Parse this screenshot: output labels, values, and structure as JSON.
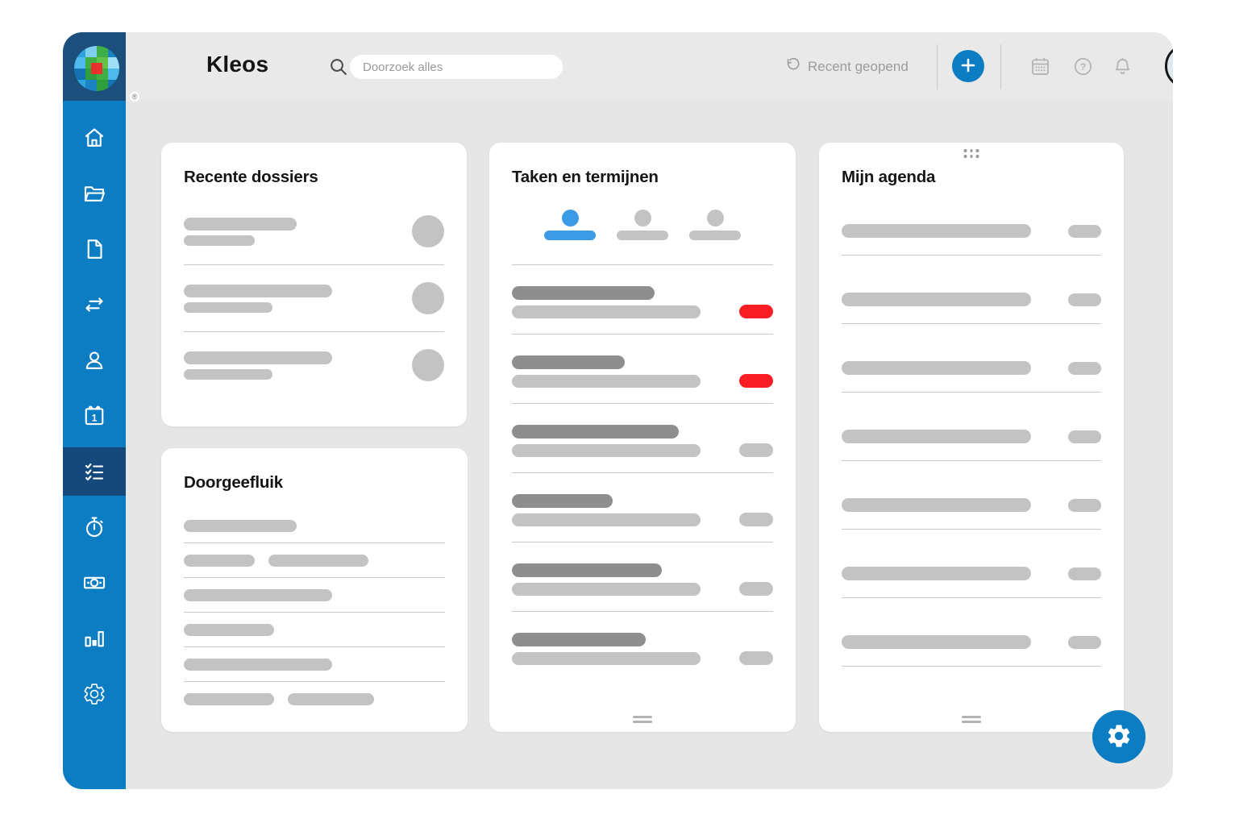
{
  "header": {
    "app_title": "Kleos",
    "search": {
      "placeholder": "Doorzoek alles",
      "icon": "search-icon"
    },
    "recent_label": "Recent geopend",
    "recent_icon": "history-icon",
    "add_button_icon": "plus-icon",
    "action_icons": [
      "calendar-icon",
      "help-icon",
      "bell-icon"
    ],
    "avatar": "user-avatar",
    "registered_mark": "®"
  },
  "sidebar": {
    "items": [
      {
        "id": "home",
        "icon": "home-icon",
        "active": false
      },
      {
        "id": "dossiers",
        "icon": "folder-icon",
        "active": false
      },
      {
        "id": "documenten",
        "icon": "document-icon",
        "active": false
      },
      {
        "id": "uitwisseling",
        "icon": "transfer-arrows-icon",
        "active": false
      },
      {
        "id": "contacten",
        "icon": "person-icon",
        "active": false
      },
      {
        "id": "agenda",
        "icon": "calendar-day-icon",
        "active": false
      },
      {
        "id": "taken",
        "icon": "task-list-icon",
        "active": true
      },
      {
        "id": "tijd",
        "icon": "stopwatch-icon",
        "active": false
      },
      {
        "id": "facturatie",
        "icon": "banknote-icon",
        "active": false
      },
      {
        "id": "rapporten",
        "icon": "bar-chart-icon",
        "active": false
      },
      {
        "id": "instellingen",
        "icon": "gear-icon",
        "active": false
      }
    ]
  },
  "cards": {
    "recente_dossiers": {
      "title": "Recente dossiers",
      "rows": [
        {
          "line1_w": 140,
          "line2_w": 88
        },
        {
          "line1_w": 184,
          "line2_w": 110
        },
        {
          "line1_w": 184,
          "line2_w": 110
        }
      ]
    },
    "doorgeefluik": {
      "title": "Doorgeefluik",
      "rows": [
        {
          "bars": [
            140
          ]
        },
        {
          "bars": [
            88,
            124
          ]
        },
        {
          "bars": [
            184
          ]
        },
        {
          "bars": [
            112
          ]
        },
        {
          "bars": [
            184
          ]
        },
        {
          "bars": [
            112,
            107
          ]
        }
      ]
    },
    "taken_en_termijnen": {
      "title": "Taken en termijnen",
      "tabs": [
        {
          "icon": "person-icon",
          "active": true
        },
        {
          "icon": "person-icon",
          "active": false
        },
        {
          "icon": "person-icon",
          "active": false
        }
      ],
      "rows": [
        {
          "title_w": 177,
          "line_w": 234,
          "badge": "red"
        },
        {
          "title_w": 140,
          "line_w": 234,
          "badge": "red"
        },
        {
          "title_w": 207,
          "line_w": 234,
          "badge": "gray"
        },
        {
          "title_w": 125,
          "line_w": 234,
          "badge": "gray"
        },
        {
          "title_w": 186,
          "line_w": 234,
          "badge": "gray"
        },
        {
          "title_w": 166,
          "line_w": 234,
          "badge": "gray"
        }
      ]
    },
    "mijn_agenda": {
      "title": "Mijn agenda",
      "rows": [
        {
          "line_w": 235,
          "pill_w": 41
        },
        {
          "line_w": 235,
          "pill_w": 41
        },
        {
          "line_w": 235,
          "pill_w": 41
        },
        {
          "line_w": 235,
          "pill_w": 41
        },
        {
          "line_w": 235,
          "pill_w": 41
        },
        {
          "line_w": 235,
          "pill_w": 41
        },
        {
          "line_w": 235,
          "pill_w": 41
        }
      ]
    }
  },
  "fab": {
    "icon": "gear-icon"
  },
  "colors": {
    "sidebar_blue": "#0d7dc3",
    "logo_navy": "#1c4f7c",
    "active_item_navy": "#16497b",
    "accent_blue": "#0d7dc3",
    "tab_blue": "#3b9be7",
    "badge_red": "#fa1d23",
    "skeleton_light": "#c3c3c3",
    "skeleton_dark": "#8e8e8e",
    "header_bg": "#e9e9e9",
    "main_bg": "#e6e6e6",
    "divider_gray": "#c8c8c8"
  }
}
